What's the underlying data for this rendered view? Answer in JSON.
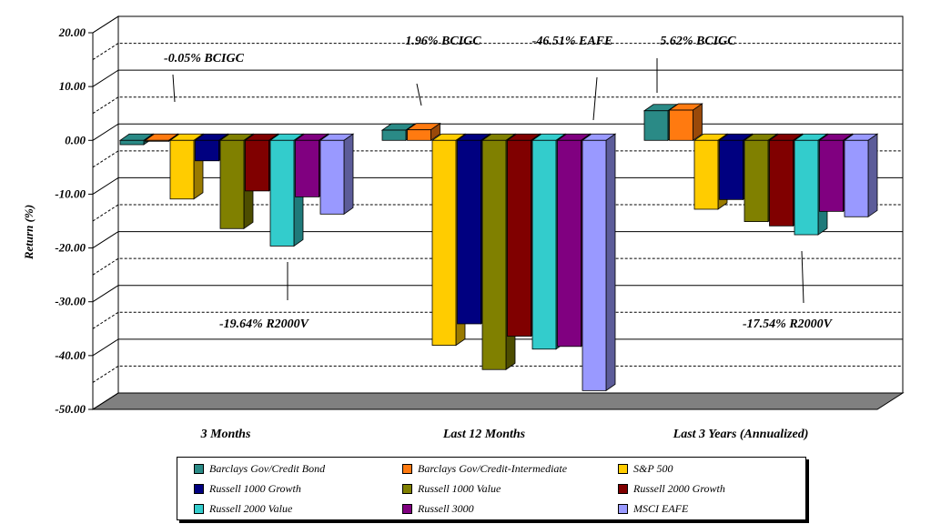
{
  "chart_data": {
    "type": "bar",
    "ylabel": "Return (%)",
    "ylim": [
      -50,
      20
    ],
    "yticks": [
      "20.00",
      "10.00",
      "0.00",
      "-10.00",
      "-20.00",
      "-30.00",
      "-40.00",
      "-50.00"
    ],
    "categories": [
      "3 Months",
      "Last 12 Months",
      "Last 3 Years (Annualized)"
    ],
    "series": [
      {
        "name": "Barclays Gov/Credit Bond",
        "color": "#2a8a86",
        "values": [
          -0.8,
          1.9,
          5.5
        ]
      },
      {
        "name": "Barclays Gov/Credit-Intermediate",
        "color": "#ff7a10",
        "values": [
          -0.05,
          1.96,
          5.62
        ]
      },
      {
        "name": "S&P 500",
        "color": "#ffcc00",
        "values": [
          -10.9,
          -38.1,
          -12.8
        ]
      },
      {
        "name": "Russell 1000 Growth",
        "color": "#000080",
        "values": [
          -3.8,
          -34.1,
          -11.0
        ]
      },
      {
        "name": "Russell 1000 Value",
        "color": "#808000",
        "values": [
          -16.4,
          -42.6,
          -15.1
        ]
      },
      {
        "name": "Russell 2000 Growth",
        "color": "#800000",
        "values": [
          -9.4,
          -36.4,
          -15.9
        ]
      },
      {
        "name": "Russell 2000 Value",
        "color": "#33cccc",
        "values": [
          -19.64,
          -38.8,
          -17.54
        ]
      },
      {
        "name": "Russell 3000",
        "color": "#800080",
        "values": [
          -10.5,
          -38.3,
          -13.2
        ]
      },
      {
        "name": "MSCI EAFE",
        "color": "#9999ff",
        "values": [
          -13.7,
          -46.51,
          -14.2
        ]
      }
    ],
    "annotations": [
      {
        "text": "-0.05% BCIGC"
      },
      {
        "text": "1.96% BCIGC"
      },
      {
        "text": "-46.51% EAFE"
      },
      {
        "text": "5.62% BCIGC"
      },
      {
        "text": "-19.64% R2000V"
      },
      {
        "text": "-17.54% R2000V"
      }
    ],
    "grid": true,
    "legend_position": "bottom"
  }
}
